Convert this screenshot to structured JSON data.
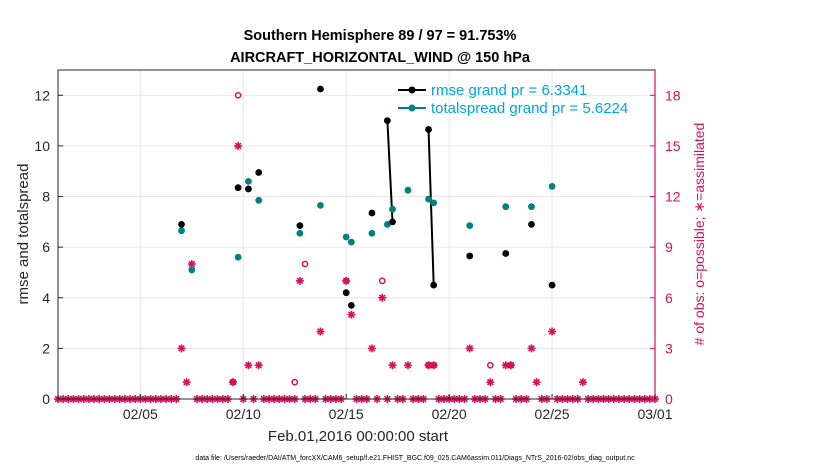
{
  "chart_data": {
    "type": "scatter",
    "title": "Southern Hemisphere 89 / 97 = 91.753%",
    "subtitle": "AIRCRAFT_HORIZONTAL_WIND @ 150 hPa",
    "xlabel": "Feb.01,2016 00:00:00 start",
    "ylabel": "rmse and totalspread",
    "ylabel_right": "# of obs: o=possible; ∗=assimilated",
    "footnote": "data file: /Users/raeder/DAI/ATM_forcXX/CAM6_setup/f.e21.FHIST_BGC.f09_025.CAM6assim.011/Diags_NTrS_2016-02/obs_diag_output.nc",
    "xlim": [
      1,
      30
    ],
    "ylim": [
      0,
      13
    ],
    "ylim_right": [
      0,
      19.5
    ],
    "x_ticks": [
      5,
      10,
      15,
      20,
      25,
      30
    ],
    "x_tick_labels": [
      "02/05",
      "02/10",
      "02/15",
      "02/20",
      "02/25",
      "03/01"
    ],
    "y_ticks": [
      0,
      2,
      4,
      6,
      8,
      10,
      12
    ],
    "y_ticks_right": [
      0,
      3,
      6,
      9,
      12,
      15,
      18
    ],
    "grid": true,
    "legend_position": "top-right",
    "colors": {
      "rmse": "#000000",
      "spread": "#00807f",
      "obs": "#d6105c",
      "axis": "#262626",
      "grid": "#e6e6e6",
      "legend_spread_text": "#00a5e0"
    },
    "series": [
      {
        "name": "rmse grand pr = 6.3341",
        "color": "#000000",
        "x": [
          7.0,
          9.75,
          10.25,
          10.75,
          12.75,
          13.75,
          15.0,
          15.25,
          16.25,
          17.0,
          17.25,
          19.0,
          19.25,
          21.0,
          22.75,
          24.0,
          25.0
        ],
        "y": [
          6.9,
          8.35,
          8.3,
          8.95,
          6.85,
          12.25,
          4.2,
          3.7,
          7.35,
          11.0,
          7.0,
          10.65,
          4.5,
          5.65,
          5.75,
          6.9,
          4.5
        ]
      },
      {
        "name": "totalspread grand pr = 5.6224",
        "color": "#00807f",
        "x": [
          7.0,
          7.5,
          9.75,
          10.25,
          10.75,
          12.75,
          13.75,
          15.0,
          15.25,
          16.25,
          17.0,
          17.25,
          18.0,
          19.0,
          19.25,
          21.0,
          22.75,
          24.0,
          25.0
        ],
        "y": [
          6.65,
          5.1,
          5.6,
          8.6,
          7.85,
          6.55,
          7.65,
          6.4,
          6.2,
          6.55,
          6.9,
          7.5,
          8.25,
          7.9,
          7.75,
          6.85,
          7.6,
          7.6,
          8.4
        ]
      },
      {
        "name": "obs possible",
        "color": "#d6105c",
        "marker": "o",
        "x": [
          9.5,
          9.75,
          12.5,
          13.0,
          15.0,
          16.75,
          19.0,
          19.25,
          22.0,
          23.0
        ],
        "y": [
          1.0,
          18.0,
          1.0,
          8.0,
          7.0,
          7.0,
          2.0,
          2.0,
          2.0,
          2.0
        ]
      },
      {
        "name": "obs assimilated",
        "color": "#d6105c",
        "marker": "*",
        "x": [
          7.0,
          7.25,
          7.5,
          9.5,
          9.75,
          10.25,
          10.75,
          12.75,
          13.75,
          15.0,
          15.25,
          16.25,
          16.75,
          17.25,
          18.0,
          19.0,
          19.25,
          21.0,
          22.0,
          22.75,
          23.0,
          24.0,
          24.25,
          25.0,
          26.5
        ],
        "y": [
          3.0,
          1.0,
          8.0,
          1.0,
          15.0,
          2.0,
          2.0,
          7.0,
          4.0,
          7.0,
          5.0,
          3.0,
          6.0,
          2.0,
          2.0,
          2.0,
          2.0,
          3.0,
          1.0,
          2.0,
          2.0,
          3.0,
          1.0,
          4.0,
          1.0
        ]
      }
    ],
    "zero_obs_x_start": 1.0,
    "zero_obs_x_end": 30.0,
    "zero_obs_x_step": 0.25,
    "connected_segments": [
      [
        17.0,
        11.0,
        17.25,
        7.0
      ],
      [
        19.0,
        10.65,
        19.25,
        4.5
      ]
    ]
  }
}
